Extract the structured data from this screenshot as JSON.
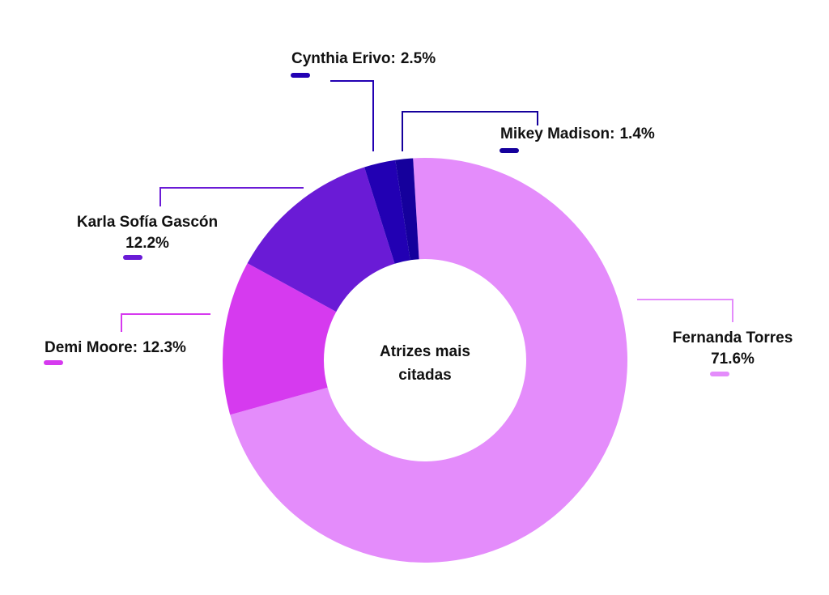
{
  "chart_data": {
    "type": "donut",
    "center_label": [
      "Atrizes mais",
      "citadas"
    ],
    "categories": [
      "Fernanda Torres",
      "Demi Moore:",
      "Karla Sofía Gascón",
      "Cynthia Erivo:",
      "Mikey Madison:"
    ],
    "values": [
      71.6,
      12.3,
      12.2,
      2.5,
      1.4
    ],
    "value_labels": [
      "71.6%",
      "12.3%",
      "12.2%",
      "2.5%",
      "1.4%"
    ],
    "colors": [
      "#e48cfb",
      "#d63aef",
      "#6a1bd6",
      "#2200b3",
      "#15009c"
    ]
  }
}
